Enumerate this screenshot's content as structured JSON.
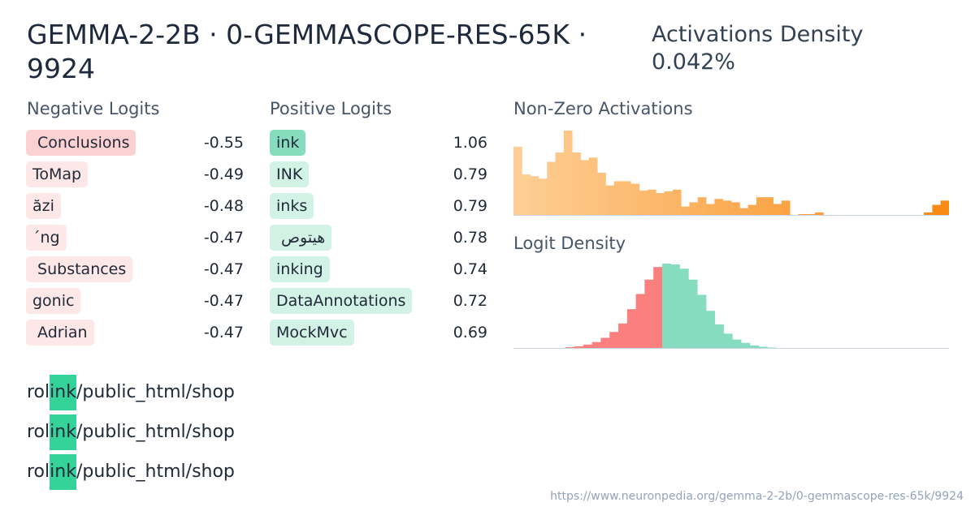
{
  "header": {
    "title": "GEMMA-2-2B · 0-GEMMASCOPE-RES-65K · 9924",
    "density_label": "Activations Density",
    "density_value": "0.042%"
  },
  "negative_logits": {
    "heading": "Negative Logits",
    "items": [
      {
        "token": " Conclusions",
        "value": "-0.55"
      },
      {
        "token": "ToMap",
        "value": "-0.49"
      },
      {
        "token": "ăzi",
        "value": "-0.48"
      },
      {
        "token": "´ng",
        "value": "-0.47"
      },
      {
        "token": " Substances",
        "value": "-0.47"
      },
      {
        "token": "gonic",
        "value": "-0.47"
      },
      {
        "token": " Adrian",
        "value": "-0.47"
      }
    ]
  },
  "positive_logits": {
    "heading": "Positive Logits",
    "items": [
      {
        "token": "ink",
        "value": "1.06"
      },
      {
        "token": "INK",
        "value": "0.79"
      },
      {
        "token": "inks",
        "value": "0.79"
      },
      {
        "token": " هيتوص",
        "value": "0.78"
      },
      {
        "token": "inking",
        "value": "0.74"
      },
      {
        "token": "DataAnnotations",
        "value": "0.72"
      },
      {
        "token": "MockMvc",
        "value": "0.69"
      }
    ]
  },
  "examples": [
    {
      "before": "rol",
      "highlight": "ink",
      "after": "/public_html/shop"
    },
    {
      "before": "rol",
      "highlight": "ink",
      "after": "/public_html/shop"
    },
    {
      "before": "rol",
      "highlight": "ink",
      "after": "/public_html/shop"
    }
  ],
  "activations_chart": {
    "title": "Non-Zero Activations",
    "chart_data": {
      "type": "bar",
      "values": [
        8.1,
        4.8,
        4.6,
        4.3,
        6.3,
        7.4,
        10,
        7.4,
        6.5,
        6.8,
        5,
        3.5,
        4,
        4,
        3.7,
        2.9,
        3,
        2.6,
        2.8,
        3,
        1,
        1.5,
        2.1,
        1.3,
        1.9,
        1.7,
        1.5,
        0.8,
        1.2,
        2.1,
        2.1,
        1.3,
        1.7,
        0,
        0.1,
        0.1,
        0.3,
        0,
        0,
        0,
        0,
        0,
        0,
        0,
        0,
        0,
        0,
        0,
        0,
        0.3,
        1.2,
        1.7
      ],
      "colors": {
        "start": "#fdce95",
        "end": "#f98a14"
      }
    }
  },
  "logit_density_chart": {
    "title": "Logit Density",
    "chart_data": {
      "type": "bar",
      "negative_values": [
        0,
        0,
        0,
        0,
        0,
        0,
        0,
        0,
        0.1,
        0.2,
        0.4,
        0.7,
        1.2,
        1.9,
        2.9,
        4.6,
        6.4,
        8.1,
        9.6
      ],
      "positive_values": [
        10,
        9.9,
        9.4,
        8.1,
        6.3,
        4.4,
        2.8,
        1.7,
        1,
        0.6,
        0.3,
        0.15,
        0.05
      ],
      "colors": {
        "negative": "#fb7f7f",
        "positive": "#86dcbe"
      }
    }
  },
  "footer": {
    "url": "https://www.neuronpedia.org/gemma-2-2b/0-gemmascope-res-65k/9924"
  }
}
